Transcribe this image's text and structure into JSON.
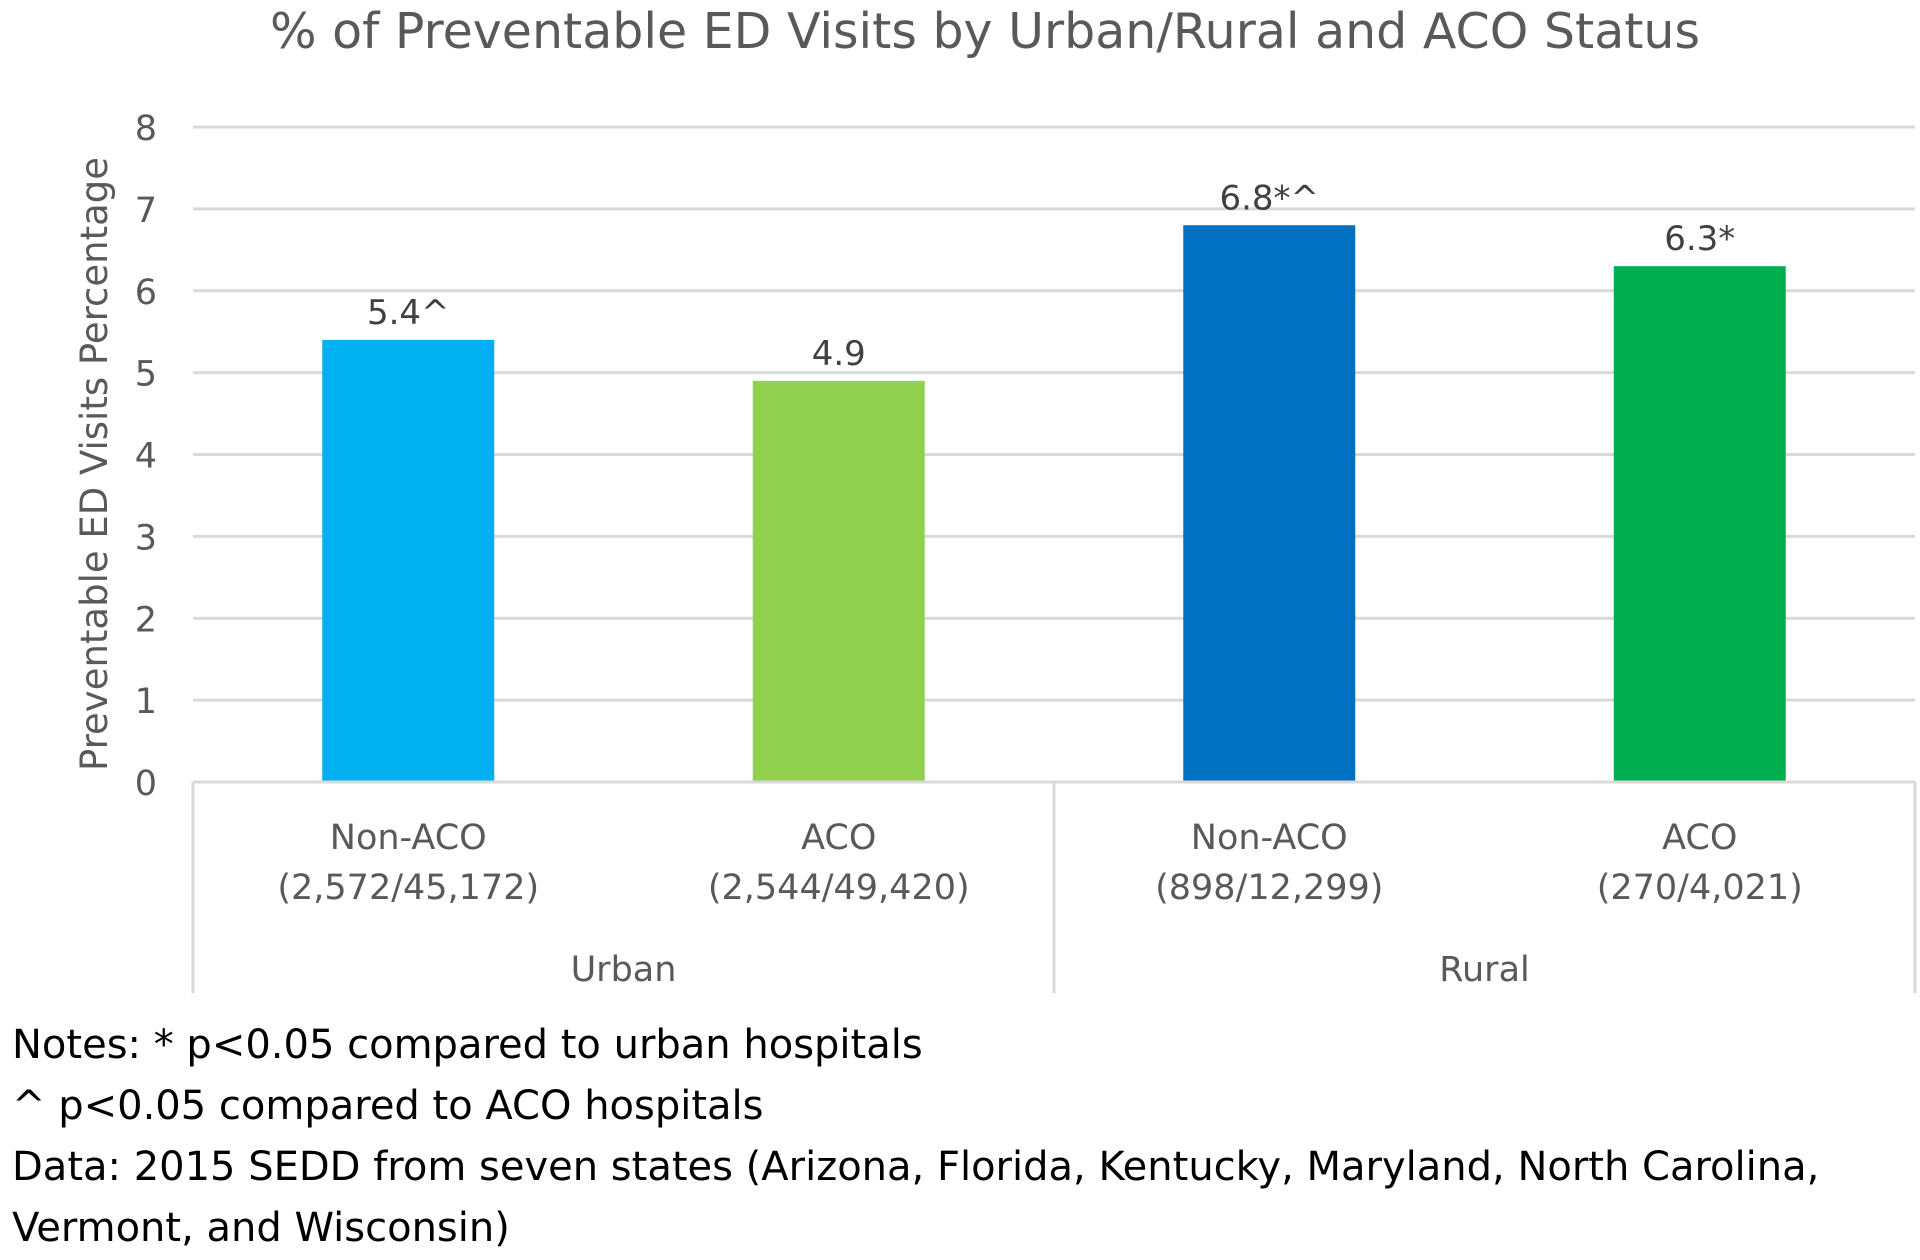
{
  "chart_data": {
    "type": "bar",
    "title": "% of Preventable ED Visits by Urban/Rural and ACO Status",
    "ylabel": "Preventable ED Visits  Percentage",
    "xlabel": "",
    "ylim": [
      0,
      8
    ],
    "yticks": [
      0,
      1,
      2,
      3,
      4,
      5,
      6,
      7,
      8
    ],
    "grid": true,
    "categories": [
      {
        "line1": "Non-ACO",
        "line2": "(2,572/45,172)",
        "group": "Urban"
      },
      {
        "line1": "ACO",
        "line2": "(2,544/49,420)",
        "group": "Urban"
      },
      {
        "line1": "Non-ACO",
        "line2": "(898/12,299)",
        "group": "Rural"
      },
      {
        "line1": "ACO",
        "line2": "(270/4,021)",
        "group": "Rural"
      }
    ],
    "groups": [
      "Urban",
      "Rural"
    ],
    "values": [
      5.4,
      4.9,
      6.8,
      6.3
    ],
    "data_labels": [
      "5.4^",
      "4.9",
      "6.8*^",
      "6.3*"
    ],
    "colors": [
      "#00B0F0",
      "#92D050",
      "#0070C0",
      "#00B050"
    ]
  },
  "notes": [
    "Notes: * p<0.05 compared to urban hospitals",
    "^ p<0.05 compared to ACO hospitals",
    "Data: 2015 SEDD from seven states (Arizona, Florida, Kentucky, Maryland, North Carolina,",
    "Vermont, and Wisconsin)"
  ]
}
